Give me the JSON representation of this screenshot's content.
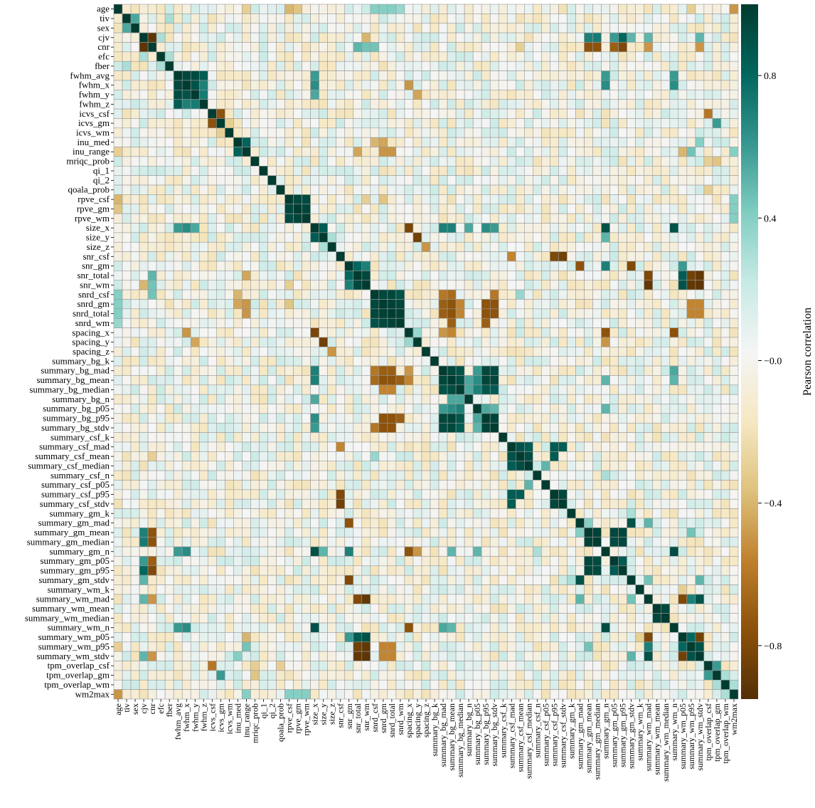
{
  "chart_data": {
    "type": "heatmap",
    "title": "",
    "colorbar_label": "Pearson correlation",
    "colorbar_ticks": [
      {
        "value": 0.8,
        "label": "0.8"
      },
      {
        "value": 0.4,
        "label": "0.4"
      },
      {
        "value": 0.0,
        "label": "−0.0"
      },
      {
        "value": -0.4,
        "label": "−0.4"
      },
      {
        "value": -0.8,
        "label": "−0.8"
      }
    ],
    "vmin": -0.95,
    "vmax": 1.0,
    "colormap": [
      "#543005",
      "#8c510a",
      "#bf812d",
      "#dfc27d",
      "#f6e8c3",
      "#f5f5f5",
      "#c7eae5",
      "#80cdc1",
      "#35978f",
      "#01665e",
      "#003c30"
    ],
    "grid_color": "#9a9a9a",
    "variables": [
      "age",
      "tiv",
      "sex",
      "cjv",
      "cnr",
      "efc",
      "fber",
      "fwhm_avg",
      "fwhm_x",
      "fwhm_y",
      "fwhm_z",
      "icvs_csf",
      "icvs_gm",
      "icvs_wm",
      "inu_med",
      "inu_range",
      "mriqc_prob",
      "qi_1",
      "qi_2",
      "qoala_prob",
      "rpve_csf",
      "rpve_gm",
      "rpve_wm",
      "size_x",
      "size_y",
      "size_z",
      "snr_csf",
      "snr_gm",
      "snr_total",
      "snr_wm",
      "snrd_csf",
      "snrd_gm",
      "snrd_total",
      "snrd_wm",
      "spacing_x",
      "spacing_y",
      "spacing_z",
      "summary_bg_k",
      "summary_bg_mad",
      "summary_bg_mean",
      "summary_bg_median",
      "summary_bg_n",
      "summary_bg_p05",
      "summary_bg_p95",
      "summary_bg_stdv",
      "summary_csf_k",
      "summary_csf_mad",
      "summary_csf_mean",
      "summary_csf_median",
      "summary_csf_n",
      "summary_csf_p05",
      "summary_csf_p95",
      "summary_csf_stdv",
      "summary_gm_k",
      "summary_gm_mad",
      "summary_gm_mean",
      "summary_gm_median",
      "summary_gm_n",
      "summary_gm_p05",
      "summary_gm_p95",
      "summary_gm_stdv",
      "summary_wm_k",
      "summary_wm_mad",
      "summary_wm_mean",
      "summary_wm_median",
      "summary_wm_n",
      "summary_wm_p05",
      "summary_wm_p95",
      "summary_wm_stdv",
      "tpm_overlap_csf",
      "tpm_overlap_gm",
      "tpm_overlap_wm",
      "wm2max"
    ],
    "diagonal": 1.0,
    "pairs": [
      {
        "a": "cjv",
        "b": "cnr",
        "v": -0.92
      },
      {
        "a": "fwhm_avg",
        "b": "fwhm_x",
        "v": 0.95
      },
      {
        "a": "fwhm_avg",
        "b": "fwhm_y",
        "v": 0.93
      },
      {
        "a": "fwhm_avg",
        "b": "fwhm_z",
        "v": 0.85
      },
      {
        "a": "fwhm_x",
        "b": "fwhm_y",
        "v": 0.9
      },
      {
        "a": "fwhm_x",
        "b": "fwhm_z",
        "v": 0.7
      },
      {
        "a": "fwhm_y",
        "b": "fwhm_z",
        "v": 0.72
      },
      {
        "a": "icvs_csf",
        "b": "icvs_gm",
        "v": -0.75
      },
      {
        "a": "icvs_gm",
        "b": "icvs_wm",
        "v": -0.3
      },
      {
        "a": "inu_med",
        "b": "inu_range",
        "v": 0.82
      },
      {
        "a": "rpve_csf",
        "b": "rpve_gm",
        "v": 0.95
      },
      {
        "a": "rpve_csf",
        "b": "rpve_wm",
        "v": 0.93
      },
      {
        "a": "rpve_gm",
        "b": "rpve_wm",
        "v": 0.96
      },
      {
        "a": "size_x",
        "b": "size_y",
        "v": 0.85
      },
      {
        "a": "size_y",
        "b": "size_z",
        "v": 0.3
      },
      {
        "a": "snr_gm",
        "b": "snr_total",
        "v": 0.8
      },
      {
        "a": "snr_gm",
        "b": "snr_wm",
        "v": 0.7
      },
      {
        "a": "snr_total",
        "b": "snr_wm",
        "v": 0.95
      },
      {
        "a": "snrd_csf",
        "b": "snrd_gm",
        "v": 0.95
      },
      {
        "a": "snrd_csf",
        "b": "snrd_total",
        "v": 0.95
      },
      {
        "a": "snrd_csf",
        "b": "snrd_wm",
        "v": 0.9
      },
      {
        "a": "snrd_gm",
        "b": "snrd_total",
        "v": 0.98
      },
      {
        "a": "snrd_gm",
        "b": "snrd_wm",
        "v": 0.95
      },
      {
        "a": "snrd_total",
        "b": "snrd_wm",
        "v": 0.97
      },
      {
        "a": "size_x",
        "b": "spacing_x",
        "v": -0.82
      },
      {
        "a": "size_y",
        "b": "spacing_y",
        "v": -0.85
      },
      {
        "a": "size_z",
        "b": "spacing_z",
        "v": -0.5
      },
      {
        "a": "spacing_x",
        "b": "spacing_y",
        "v": 0.35
      },
      {
        "a": "summary_bg_mad",
        "b": "summary_bg_mean",
        "v": 0.95
      },
      {
        "a": "summary_bg_mad",
        "b": "summary_bg_median",
        "v": 0.9
      },
      {
        "a": "summary_bg_mad",
        "b": "summary_bg_p95",
        "v": 0.95
      },
      {
        "a": "summary_bg_mad",
        "b": "summary_bg_stdv",
        "v": 0.93
      },
      {
        "a": "summary_bg_mean",
        "b": "summary_bg_median",
        "v": 0.92
      },
      {
        "a": "summary_bg_mean",
        "b": "summary_bg_p95",
        "v": 0.96
      },
      {
        "a": "summary_bg_mean",
        "b": "summary_bg_stdv",
        "v": 0.95
      },
      {
        "a": "summary_bg_median",
        "b": "summary_bg_p95",
        "v": 0.88
      },
      {
        "a": "summary_bg_median",
        "b": "summary_bg_stdv",
        "v": 0.85
      },
      {
        "a": "summary_bg_p95",
        "b": "summary_bg_stdv",
        "v": 0.96
      },
      {
        "a": "summary_bg_mad",
        "b": "summary_bg_p05",
        "v": 0.6
      },
      {
        "a": "summary_bg_mean",
        "b": "summary_bg_p05",
        "v": 0.65
      },
      {
        "a": "summary_bg_median",
        "b": "summary_bg_p05",
        "v": 0.7
      },
      {
        "a": "summary_bg_p05",
        "b": "summary_bg_p95",
        "v": 0.55
      },
      {
        "a": "summary_bg_p05",
        "b": "summary_bg_stdv",
        "v": 0.5
      },
      {
        "a": "summary_bg_n",
        "b": "summary_bg_mean",
        "v": 0.55
      },
      {
        "a": "summary_bg_n",
        "b": "summary_bg_median",
        "v": 0.55
      },
      {
        "a": "summary_bg_n",
        "b": "size_x",
        "v": 0.55
      },
      {
        "a": "summary_csf_mad",
        "b": "summary_csf_mean",
        "v": 0.9
      },
      {
        "a": "summary_csf_mad",
        "b": "summary_csf_median",
        "v": 0.85
      },
      {
        "a": "summary_csf_mean",
        "b": "summary_csf_median",
        "v": 0.92
      },
      {
        "a": "summary_csf_mad",
        "b": "summary_csf_p95",
        "v": 0.85
      },
      {
        "a": "summary_csf_mean",
        "b": "summary_csf_p95",
        "v": 0.85
      },
      {
        "a": "summary_csf_mad",
        "b": "summary_csf_stdv",
        "v": 0.85
      },
      {
        "a": "summary_csf_p95",
        "b": "summary_csf_stdv",
        "v": 0.95
      },
      {
        "a": "summary_csf_median",
        "b": "summary_csf_p05",
        "v": 0.5
      },
      {
        "a": "summary_gm_mean",
        "b": "summary_gm_median",
        "v": 0.97
      },
      {
        "a": "summary_gm_mean",
        "b": "summary_gm_p05",
        "v": 0.95
      },
      {
        "a": "summary_gm_mean",
        "b": "summary_gm_p95",
        "v": 0.95
      },
      {
        "a": "summary_gm_median",
        "b": "summary_gm_p05",
        "v": 0.93
      },
      {
        "a": "summary_gm_median",
        "b": "summary_gm_p95",
        "v": 0.94
      },
      {
        "a": "summary_gm_p05",
        "b": "summary_gm_p95",
        "v": 0.85
      },
      {
        "a": "summary_gm_mad",
        "b": "summary_gm_stdv",
        "v": 0.9
      },
      {
        "a": "summary_gm_mad",
        "b": "summary_gm_mean",
        "v": 0.4
      },
      {
        "a": "summary_wm_mad",
        "b": "summary_wm_stdv",
        "v": 0.9
      },
      {
        "a": "summary_wm_mad",
        "b": "summary_wm_p95",
        "v": 0.7
      },
      {
        "a": "summary_wm_mean",
        "b": "summary_wm_median",
        "v": 0.95
      },
      {
        "a": "summary_wm_p05",
        "b": "summary_wm_p95",
        "v": 0.8
      },
      {
        "a": "summary_wm_p05",
        "b": "summary_wm_stdv",
        "v": -0.85
      },
      {
        "a": "summary_wm_p95",
        "b": "summary_wm_stdv",
        "v": 0.9
      },
      {
        "a": "tpm_overlap_csf",
        "b": "tpm_overlap_gm",
        "v": 0.6
      },
      {
        "a": "tpm_overlap_gm",
        "b": "tpm_overlap_wm",
        "v": 0.3
      },
      {
        "a": "cjv",
        "b": "summary_gm_mean",
        "v": 0.7
      },
      {
        "a": "cjv",
        "b": "summary_gm_median",
        "v": 0.72
      },
      {
        "a": "cjv",
        "b": "summary_gm_p05",
        "v": 0.6
      },
      {
        "a": "cjv",
        "b": "summary_gm_p95",
        "v": 0.8
      },
      {
        "a": "cnr",
        "b": "summary_gm_mean",
        "v": -0.75
      },
      {
        "a": "cnr",
        "b": "summary_gm_median",
        "v": -0.75
      },
      {
        "a": "cnr",
        "b": "summary_gm_p05",
        "v": -0.7
      },
      {
        "a": "cnr",
        "b": "summary_gm_p95",
        "v": -0.8
      },
      {
        "a": "cjv",
        "b": "summary_wm_mad",
        "v": 0.5
      },
      {
        "a": "cnr",
        "b": "summary_wm_mad",
        "v": -0.5
      },
      {
        "a": "cjv",
        "b": "summary_wm_stdv",
        "v": 0.5
      },
      {
        "a": "cnr",
        "b": "summary_wm_stdv",
        "v": -0.5
      },
      {
        "a": "cnr",
        "b": "snr_total",
        "v": 0.5
      },
      {
        "a": "cnr",
        "b": "snr_wm",
        "v": 0.45
      },
      {
        "a": "cnr",
        "b": "snrd_csf",
        "v": 0.45
      },
      {
        "a": "fwhm_avg",
        "b": "size_x",
        "v": 0.6
      },
      {
        "a": "fwhm_x",
        "b": "size_x",
        "v": 0.65
      },
      {
        "a": "fwhm_y",
        "b": "size_x",
        "v": 0.55
      },
      {
        "a": "fwhm_x",
        "b": "summary_gm_n",
        "v": 0.65
      },
      {
        "a": "fwhm_avg",
        "b": "summary_gm_n",
        "v": 0.6
      },
      {
        "a": "fwhm_x",
        "b": "summary_wm_n",
        "v": 0.65
      },
      {
        "a": "fwhm_avg",
        "b": "summary_wm_n",
        "v": 0.6
      },
      {
        "a": "fwhm_x",
        "b": "spacing_x",
        "v": -0.5
      },
      {
        "a": "fwhm_y",
        "b": "spacing_y",
        "v": -0.45
      },
      {
        "a": "icvs_csf",
        "b": "tpm_overlap_csf",
        "v": -0.6
      },
      {
        "a": "icvs_gm",
        "b": "tpm_overlap_gm",
        "v": 0.6
      },
      {
        "a": "inu_med",
        "b": "snrd_csf",
        "v": -0.4
      },
      {
        "a": "inu_med",
        "b": "snrd_gm",
        "v": -0.45
      },
      {
        "a": "inu_range",
        "b": "snrd_gm",
        "v": -0.5
      },
      {
        "a": "inu_range",
        "b": "snrd_total",
        "v": -0.5
      },
      {
        "a": "inu_range",
        "b": "snr_total",
        "v": -0.45
      },
      {
        "a": "inu_range",
        "b": "summary_wm_p05",
        "v": -0.4
      },
      {
        "a": "inu_range",
        "b": "summary_wm_p95",
        "v": 0.45
      },
      {
        "a": "inu_med",
        "b": "summary_wm_stdv",
        "v": 0.4
      },
      {
        "a": "rpve_csf",
        "b": "snrd_gm",
        "v": -0.35
      },
      {
        "a": "rpve_csf",
        "b": "snr_wm",
        "v": -0.3
      },
      {
        "a": "size_x",
        "b": "summary_bg_mean",
        "v": 0.7
      },
      {
        "a": "size_x",
        "b": "summary_bg_mad",
        "v": 0.7
      },
      {
        "a": "size_x",
        "b": "summary_bg_p95",
        "v": 0.65
      },
      {
        "a": "size_x",
        "b": "summary_bg_stdv",
        "v": 0.6
      },
      {
        "a": "size_x",
        "b": "summary_gm_n",
        "v": 0.9
      },
      {
        "a": "size_x",
        "b": "summary_wm_n",
        "v": 0.9
      },
      {
        "a": "size_y",
        "b": "summary_gm_n",
        "v": 0.5
      },
      {
        "a": "spacing_x",
        "b": "summary_gm_n",
        "v": -0.75
      },
      {
        "a": "spacing_x",
        "b": "summary_wm_n",
        "v": -0.75
      },
      {
        "a": "spacing_y",
        "b": "summary_gm_n",
        "v": -0.5
      },
      {
        "a": "spacing_x",
        "b": "summary_bg_mean",
        "v": -0.55
      },
      {
        "a": "spacing_x",
        "b": "summary_bg_mad",
        "v": -0.5
      },
      {
        "a": "snr_csf",
        "b": "summary_csf_mad",
        "v": -0.55
      },
      {
        "a": "snr_csf",
        "b": "summary_csf_stdv",
        "v": -0.85
      },
      {
        "a": "snr_csf",
        "b": "summary_csf_p95",
        "v": -0.8
      },
      {
        "a": "snr_gm",
        "b": "summary_gm_mad",
        "v": -0.75
      },
      {
        "a": "snr_gm",
        "b": "summary_gm_stdv",
        "v": -0.8
      },
      {
        "a": "snr_gm",
        "b": "summary_gm_n",
        "v": 0.7
      },
      {
        "a": "snr_total",
        "b": "summary_wm_mad",
        "v": -0.8
      },
      {
        "a": "snr_wm",
        "b": "summary_wm_mad",
        "v": -0.9
      },
      {
        "a": "snr_total",
        "b": "summary_wm_p95",
        "v": -0.85
      },
      {
        "a": "snr_wm",
        "b": "summary_wm_p95",
        "v": -0.9
      },
      {
        "a": "snr_total",
        "b": "summary_wm_stdv",
        "v": -0.9
      },
      {
        "a": "snr_wm",
        "b": "summary_wm_stdv",
        "v": -0.92
      },
      {
        "a": "snr_total",
        "b": "summary_wm_p05",
        "v": 0.85
      },
      {
        "a": "snr_wm",
        "b": "summary_wm_p05",
        "v": 0.9
      },
      {
        "a": "snr_gm",
        "b": "summary_wm_p05",
        "v": 0.6
      },
      {
        "a": "snrd_csf",
        "b": "summary_bg_mad",
        "v": -0.6
      },
      {
        "a": "snrd_csf",
        "b": "summary_bg_mean",
        "v": -0.65
      },
      {
        "a": "snrd_gm",
        "b": "summary_bg_mean",
        "v": -0.75
      },
      {
        "a": "snrd_gm",
        "b": "summary_bg_mad",
        "v": -0.7
      },
      {
        "a": "snrd_total",
        "b": "summary_bg_mean",
        "v": -0.75
      },
      {
        "a": "snrd_total",
        "b": "summary_bg_mad",
        "v": -0.7
      },
      {
        "a": "snrd_wm",
        "b": "summary_bg_mean",
        "v": -0.7
      },
      {
        "a": "snrd_gm",
        "b": "summary_bg_p95",
        "v": -0.75
      },
      {
        "a": "snrd_total",
        "b": "summary_bg_p95",
        "v": -0.75
      },
      {
        "a": "snrd_wm",
        "b": "summary_bg_p95",
        "v": -0.7
      },
      {
        "a": "snrd_gm",
        "b": "summary_bg_stdv",
        "v": -0.75
      },
      {
        "a": "snrd_total",
        "b": "summary_bg_stdv",
        "v": -0.75
      },
      {
        "a": "snrd_csf",
        "b": "summary_bg_stdv",
        "v": -0.6
      },
      {
        "a": "snrd_gm",
        "b": "summary_bg_median",
        "v": -0.55
      },
      {
        "a": "snrd_total",
        "b": "summary_bg_median",
        "v": -0.55
      },
      {
        "a": "snrd_gm",
        "b": "summary_wm_p95",
        "v": -0.55
      },
      {
        "a": "snrd_total",
        "b": "summary_wm_p95",
        "v": -0.55
      },
      {
        "a": "snrd_gm",
        "b": "summary_wm_stdv",
        "v": -0.55
      },
      {
        "a": "snrd_total",
        "b": "summary_wm_stdv",
        "v": -0.55
      },
      {
        "a": "snrd_csf",
        "b": "summary_csf_mean",
        "v": 0.35
      },
      {
        "a": "summary_bg_p05",
        "b": "summary_gm_n",
        "v": 0.5
      },
      {
        "a": "summary_bg_mean",
        "b": "summary_gm_n",
        "v": 0.5
      },
      {
        "a": "summary_bg_mean",
        "b": "summary_wm_n",
        "v": 0.5
      },
      {
        "a": "summary_bg_mad",
        "b": "summary_wm_n",
        "v": 0.55
      },
      {
        "a": "summary_gm_mad",
        "b": "summary_wm_mad",
        "v": 0.5
      },
      {
        "a": "summary_gm_stdv",
        "b": "summary_wm_stdv",
        "v": 0.5
      },
      {
        "a": "summary_gm_stdv",
        "b": "summary_wm_mad",
        "v": 0.45
      },
      {
        "a": "summary_gm_mean",
        "b": "summary_wm_p95",
        "v": 0.45
      },
      {
        "a": "summary_gm_n",
        "b": "summary_wm_n",
        "v": 0.92
      },
      {
        "a": "summary_gm_n",
        "b": "summary_csf_n",
        "v": 0.3
      },
      {
        "a": "summary_wm_k",
        "b": "summary_wm_p05",
        "v": -0.3
      },
      {
        "a": "summary_wm_mad",
        "b": "summary_wm_p05",
        "v": -0.8
      },
      {
        "a": "summary_gm_k",
        "b": "summary_gm_stdv",
        "v": 0.3
      },
      {
        "a": "qoala_prob",
        "b": "tpm_overlap_csf",
        "v": -0.3
      },
      {
        "a": "mriqc_prob",
        "b": "tpm_overlap_gm",
        "v": -0.35
      },
      {
        "a": "mriqc_prob",
        "b": "tpm_overlap_csf",
        "v": -0.3
      },
      {
        "a": "wm2max",
        "b": "age",
        "v": -0.5
      },
      {
        "a": "wm2max",
        "b": "rpve_csf",
        "v": 0.4
      },
      {
        "a": "wm2max",
        "b": "rpve_gm",
        "v": 0.4
      },
      {
        "a": "wm2max",
        "b": "rpve_wm",
        "v": 0.4
      },
      {
        "a": "wm2max",
        "b": "inu_range",
        "v": 0.4
      },
      {
        "a": "wm2max",
        "b": "tpm_overlap_wm",
        "v": 0.3
      },
      {
        "a": "age",
        "b": "rpve_csf",
        "v": -0.4
      },
      {
        "a": "age",
        "b": "rpve_gm",
        "v": -0.35
      },
      {
        "a": "age",
        "b": "inu_range",
        "v": -0.3
      },
      {
        "a": "age",
        "b": "snrd_csf",
        "v": 0.4
      },
      {
        "a": "age",
        "b": "snrd_gm",
        "v": 0.4
      },
      {
        "a": "age",
        "b": "snrd_total",
        "v": 0.4
      },
      {
        "a": "age",
        "b": "snrd_wm",
        "v": 0.35
      },
      {
        "a": "age",
        "b": "summary_wm_p95",
        "v": -0.3
      },
      {
        "a": "tiv",
        "b": "sex",
        "v": 0.55
      },
      {
        "a": "tiv",
        "b": "fber",
        "v": 0.3
      },
      {
        "a": "efc",
        "b": "fber",
        "v": 0.3
      },
      {
        "a": "cjv",
        "b": "efc",
        "v": 0.3
      },
      {
        "a": "cjv",
        "b": "snr_wm",
        "v": -0.4
      },
      {
        "a": "cnr",
        "b": "summary_csf_mean",
        "v": -0.3
      },
      {
        "a": "cjv",
        "b": "summary_gm_stdv",
        "v": 0.5
      }
    ]
  }
}
